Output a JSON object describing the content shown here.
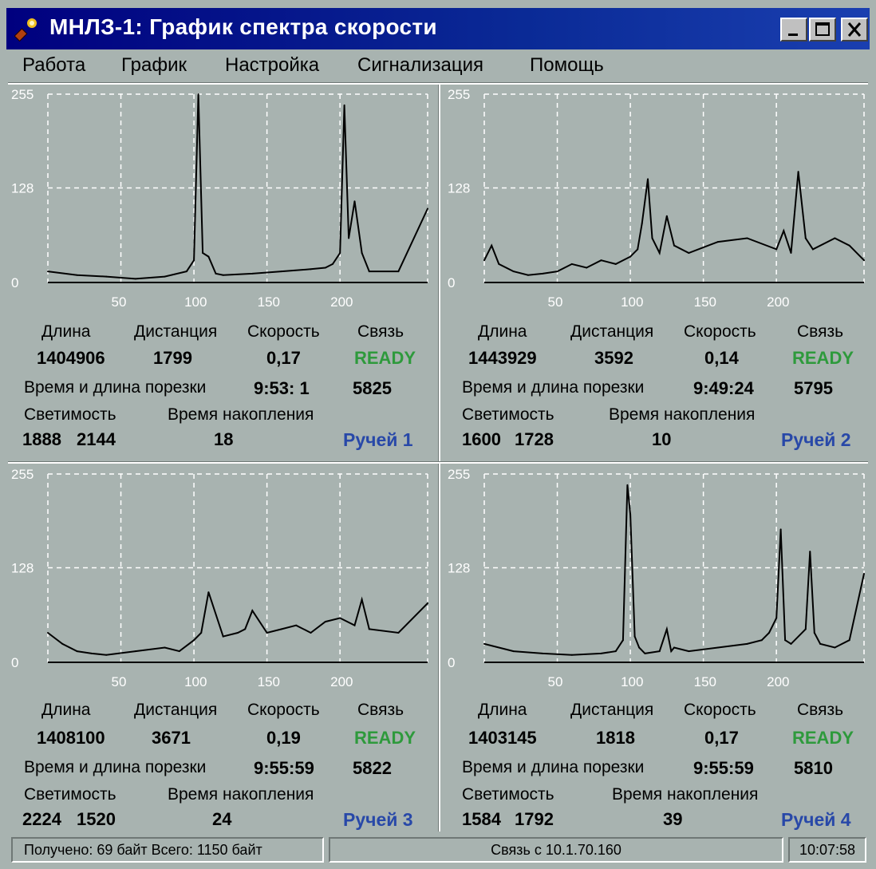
{
  "window": {
    "title": "МНЛЗ-1: График спектра скорости",
    "icon": "torch-icon",
    "buttons": [
      "minimize-icon",
      "maximize-icon",
      "close-icon"
    ]
  },
  "menu": [
    "Работа",
    "График",
    "Настройка",
    "Сигнализация",
    "Помощь"
  ],
  "labels": {
    "length": "Длина",
    "distance": "Дистанция",
    "speed": "Скорость",
    "link": "Связь",
    "cut": "Время и длина порезки",
    "lum": "Светимость",
    "acc": "Время накопления"
  },
  "colors": {
    "ready": "#2e9a3c",
    "stream": "#2848a8",
    "titlebar": "#00007f"
  },
  "panels": [
    {
      "length": "1404906",
      "distance": "1799",
      "speed": "0,17",
      "status": "READY",
      "cut_time": "9:53: 1",
      "cut_len": "5825",
      "lum1": "1888",
      "lum2": "2144",
      "acc": "18",
      "stream": "Ручей 1"
    },
    {
      "length": "1443929",
      "distance": "3592",
      "speed": "0,14",
      "status": "READY",
      "cut_time": "9:49:24",
      "cut_len": "5795",
      "lum1": "1600",
      "lum2": "1728",
      "acc": "10",
      "stream": "Ручей 2"
    },
    {
      "length": "1408100",
      "distance": "3671",
      "speed": "0,19",
      "status": "READY",
      "cut_time": "9:55:59",
      "cut_len": "5822",
      "lum1": "2224",
      "lum2": "1520",
      "acc": "24",
      "stream": "Ручей 3"
    },
    {
      "length": "1403145",
      "distance": "1818",
      "speed": "0,17",
      "status": "READY",
      "cut_time": "9:55:59",
      "cut_len": "5810",
      "lum1": "1584",
      "lum2": "1792",
      "acc": "39",
      "stream": "Ручей 4"
    }
  ],
  "chart_data": [
    {
      "type": "line",
      "title": "",
      "xlabel": "",
      "ylabel": "",
      "y_ticks": [
        "255",
        "128",
        "0"
      ],
      "x_ticks": [
        "50",
        "100",
        "150",
        "200"
      ],
      "xlim": [
        0,
        260
      ],
      "ylim": [
        0,
        255
      ],
      "grid": true,
      "series": [
        {
          "x": [
            0,
            20,
            40,
            60,
            80,
            95,
            100,
            103,
            106,
            110,
            115,
            120,
            140,
            160,
            180,
            190,
            195,
            200,
            203,
            206,
            210,
            215,
            220,
            240,
            260
          ],
          "y": [
            15,
            10,
            8,
            5,
            8,
            15,
            30,
            255,
            40,
            35,
            12,
            10,
            12,
            15,
            18,
            20,
            25,
            40,
            240,
            60,
            110,
            40,
            15,
            15,
            100
          ]
        }
      ]
    },
    {
      "type": "line",
      "title": "",
      "xlabel": "",
      "ylabel": "",
      "y_ticks": [
        "255",
        "128",
        "0"
      ],
      "x_ticks": [
        "50",
        "100",
        "150",
        "200"
      ],
      "xlim": [
        0,
        260
      ],
      "ylim": [
        0,
        255
      ],
      "grid": true,
      "series": [
        {
          "x": [
            0,
            5,
            10,
            20,
            30,
            40,
            50,
            60,
            70,
            80,
            90,
            100,
            105,
            108,
            112,
            115,
            120,
            125,
            130,
            140,
            160,
            180,
            200,
            205,
            210,
            215,
            220,
            225,
            240,
            250,
            260
          ],
          "y": [
            30,
            50,
            25,
            15,
            10,
            12,
            15,
            25,
            20,
            30,
            25,
            35,
            45,
            80,
            140,
            60,
            40,
            90,
            50,
            40,
            55,
            60,
            45,
            70,
            40,
            150,
            60,
            45,
            60,
            50,
            30
          ]
        }
      ]
    },
    {
      "type": "line",
      "title": "",
      "xlabel": "",
      "ylabel": "",
      "y_ticks": [
        "255",
        "128",
        "0"
      ],
      "x_ticks": [
        "50",
        "100",
        "150",
        "200"
      ],
      "xlim": [
        0,
        260
      ],
      "ylim": [
        0,
        255
      ],
      "grid": true,
      "series": [
        {
          "x": [
            0,
            10,
            20,
            30,
            40,
            60,
            80,
            90,
            100,
            105,
            110,
            120,
            130,
            135,
            140,
            150,
            160,
            170,
            180,
            190,
            200,
            210,
            215,
            220,
            240,
            260
          ],
          "y": [
            40,
            25,
            15,
            12,
            10,
            15,
            20,
            15,
            30,
            40,
            95,
            35,
            40,
            45,
            70,
            40,
            45,
            50,
            40,
            55,
            60,
            50,
            85,
            45,
            40,
            80
          ]
        }
      ]
    },
    {
      "type": "line",
      "title": "",
      "xlabel": "",
      "ylabel": "",
      "y_ticks": [
        "255",
        "128",
        "0"
      ],
      "x_ticks": [
        "50",
        "100",
        "150",
        "200"
      ],
      "xlim": [
        0,
        260
      ],
      "ylim": [
        0,
        255
      ],
      "grid": true,
      "series": [
        {
          "x": [
            0,
            20,
            40,
            60,
            80,
            90,
            95,
            98,
            100,
            103,
            106,
            110,
            120,
            125,
            128,
            130,
            140,
            160,
            180,
            190,
            195,
            200,
            203,
            206,
            210,
            220,
            223,
            226,
            230,
            240,
            250,
            260
          ],
          "y": [
            25,
            15,
            12,
            10,
            12,
            15,
            30,
            240,
            200,
            35,
            20,
            12,
            15,
            45,
            15,
            20,
            15,
            20,
            25,
            30,
            40,
            60,
            180,
            30,
            25,
            45,
            150,
            40,
            25,
            20,
            30,
            120
          ]
        }
      ]
    }
  ],
  "statusbar": {
    "received": "Получено:  69 байт   Всего: 1150 байт",
    "connection": "Связь с 10.1.70.160",
    "time": "10:07:58"
  }
}
